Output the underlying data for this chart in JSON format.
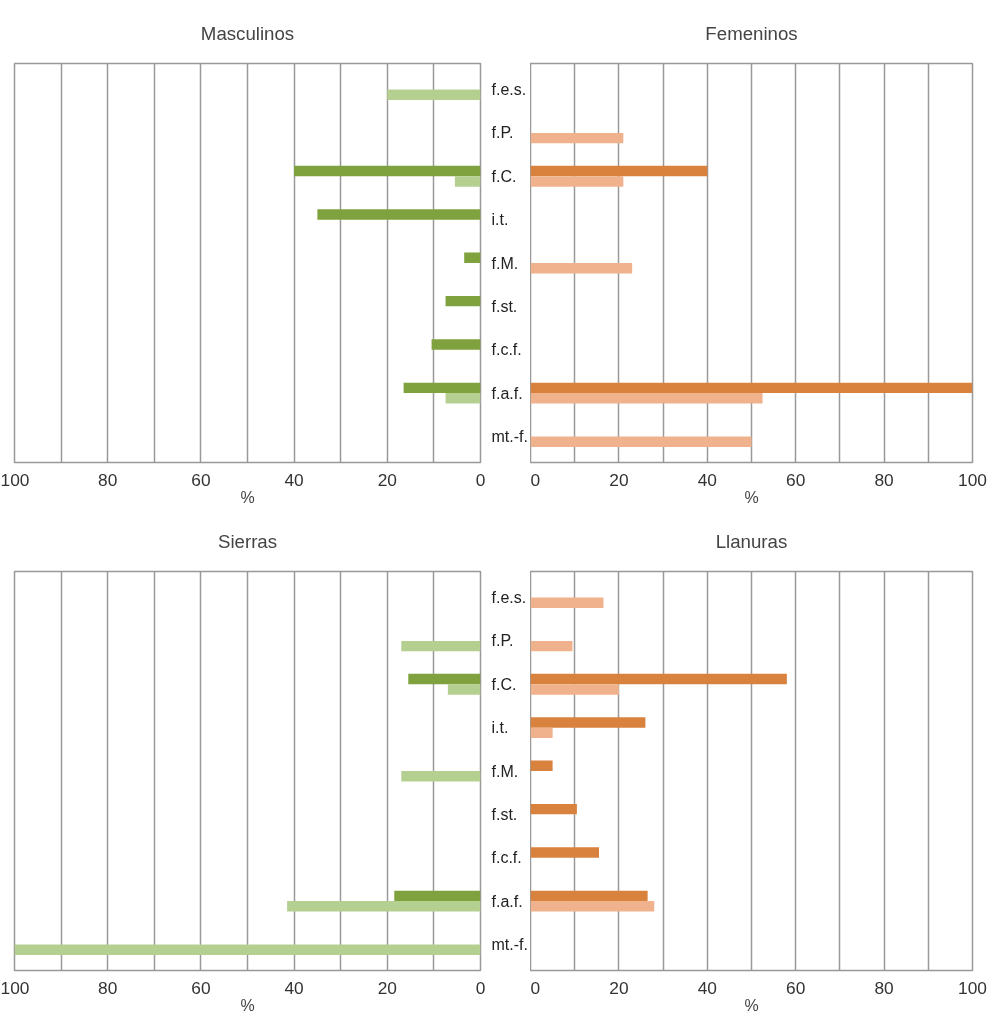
{
  "chart_data": [
    {
      "type": "bar",
      "orientation": "horizontal",
      "title": "Masculinos",
      "xlabel": "%",
      "grid": "x",
      "categories": [
        "f.e.s.",
        "f.P.",
        "f.C.",
        "i.t.",
        "f.M.",
        "f.st.",
        "f.c.f.",
        "f.a.f.",
        "mt.-f."
      ],
      "series": [
        {
          "color": "#7fa23e",
          "values": [
            null,
            null,
            40,
            35,
            3.5,
            7.5,
            10.5,
            16.5,
            null
          ]
        },
        {
          "color": "#b5cf91",
          "values": [
            20,
            null,
            5.5,
            null,
            null,
            null,
            null,
            7.5,
            null
          ]
        }
      ],
      "xlim": [
        100,
        0
      ],
      "xticks": [
        100,
        {
          "value": 90,
          "label": null
        },
        80,
        {
          "value": 70,
          "label": null
        },
        60,
        {
          "value": 50,
          "label": null
        },
        40,
        {
          "value": 30,
          "label": null
        },
        20,
        {
          "value": 10,
          "label": null
        },
        0
      ]
    },
    {
      "type": "bar",
      "orientation": "horizontal",
      "title": "Femeninos",
      "xlabel": "%",
      "grid": "x",
      "categories": [
        null,
        null,
        null,
        null,
        null,
        null,
        null,
        null,
        null
      ],
      "series": [
        {
          "color": "#d9823e",
          "values": [
            null,
            null,
            40,
            null,
            null,
            null,
            null,
            100,
            null
          ]
        },
        {
          "color": "#f0b28c",
          "values": [
            null,
            21,
            21,
            null,
            23,
            null,
            null,
            52.5,
            50
          ]
        }
      ],
      "xlim": [
        0,
        100
      ],
      "xticks": [
        0,
        {
          "value": 10,
          "label": null
        },
        20,
        {
          "value": 30,
          "label": null
        },
        40,
        {
          "value": 50,
          "label": null
        },
        60,
        {
          "value": 70,
          "label": null
        },
        80,
        {
          "value": 90,
          "label": null
        },
        100
      ]
    },
    {
      "type": "bar",
      "orientation": "horizontal",
      "title": "Sierras",
      "xlabel": "%",
      "grid": "x",
      "categories": [
        "f.e.s.",
        "f.P.",
        "f.C.",
        "i.t.",
        "f.M.",
        "f.st.",
        "f.c.f.",
        "f.a.f.",
        "mt.-f."
      ],
      "series": [
        {
          "color": "#7fa23e",
          "values": [
            null,
            null,
            15.5,
            null,
            null,
            null,
            null,
            18.5,
            null
          ]
        },
        {
          "color": "#b5cf91",
          "values": [
            null,
            17,
            7,
            null,
            17,
            null,
            null,
            41.5,
            100
          ]
        }
      ],
      "xlim": [
        100,
        0
      ],
      "xticks": [
        100,
        {
          "value": 90,
          "label": null
        },
        80,
        {
          "value": 70,
          "label": null
        },
        60,
        {
          "value": 50,
          "label": null
        },
        40,
        {
          "value": 30,
          "label": null
        },
        20,
        {
          "value": 10,
          "label": null
        },
        0
      ]
    },
    {
      "type": "bar",
      "orientation": "horizontal",
      "title": "Llanuras",
      "xlabel": "%",
      "grid": "x",
      "categories": [
        null,
        null,
        null,
        null,
        null,
        null,
        null,
        null,
        null
      ],
      "series": [
        {
          "color": "#d9823e",
          "values": [
            null,
            null,
            58,
            26,
            5,
            10.5,
            15.5,
            26.5,
            null
          ]
        },
        {
          "color": "#f0b28c",
          "values": [
            16.5,
            9.5,
            20,
            5,
            null,
            null,
            null,
            28,
            null
          ]
        }
      ],
      "xlim": [
        0,
        100
      ],
      "xticks": [
        0,
        {
          "value": 10,
          "label": null
        },
        20,
        {
          "value": 30,
          "label": null
        },
        40,
        {
          "value": 50,
          "label": null
        },
        60,
        {
          "value": 70,
          "label": null
        },
        80,
        {
          "value": 90,
          "label": null
        },
        100
      ]
    }
  ]
}
